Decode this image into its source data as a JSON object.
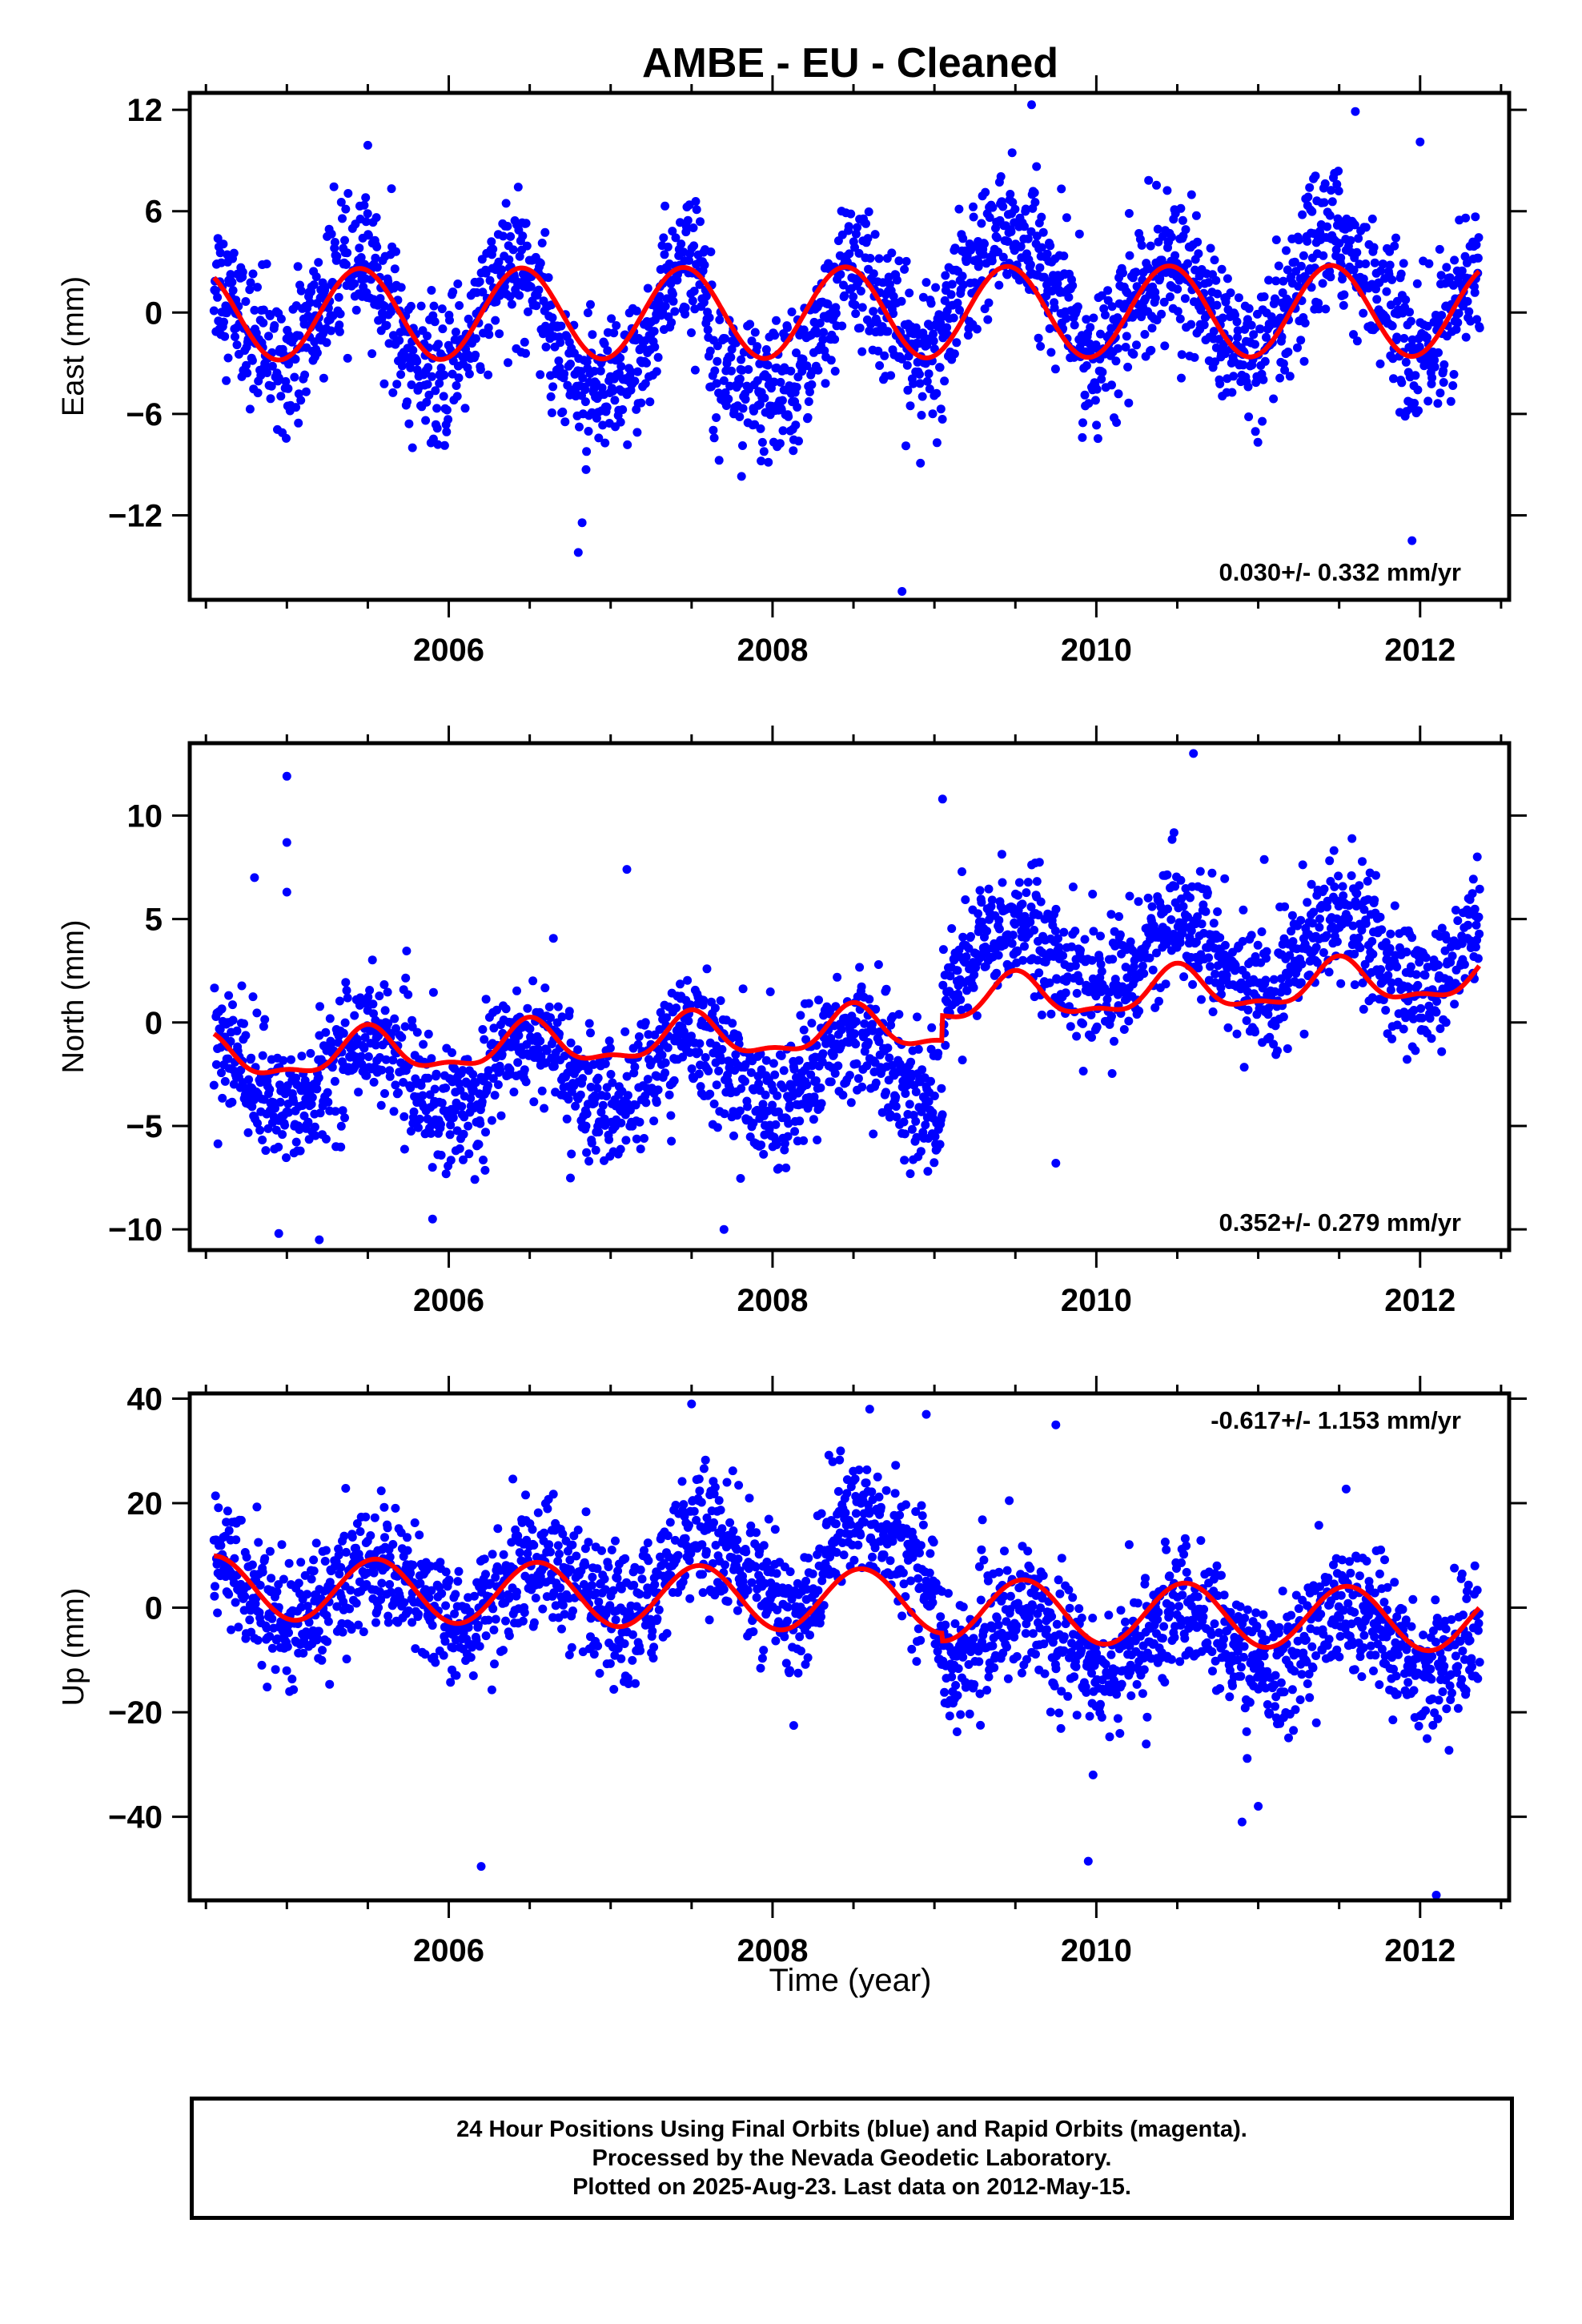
{
  "figure_title": "AMBE  - EU - Cleaned",
  "xlabel_bottom": "Time (year)",
  "caption": [
    "24 Hour Positions Using Final Orbits (blue) and Rapid Orbits (magenta).",
    "Processed by the Nevada Geodetic Laboratory.",
    "Plotted on 2025-Aug-23. Last data on 2012-May-15."
  ],
  "colors": {
    "points": "#0000ff",
    "fit": "#ff0000",
    "axes": "#000000"
  },
  "chart_data": [
    {
      "type": "scatter",
      "ylabel": "East (mm)",
      "rate_label": "0.030+/- 0.332 mm/yr",
      "rate_position": "bottom-right",
      "xlim": [
        2004.4,
        2012.55
      ],
      "ylim": [
        -17,
        13
      ],
      "xticks": [
        2006,
        2008,
        2010,
        2012
      ],
      "yticks": [
        12,
        6,
        0,
        -6,
        -12
      ],
      "ytick_labels": [
        "12",
        "6",
        "0",
        "−6",
        "−12"
      ],
      "series": [
        {
          "kind": "points",
          "color": "#0000ff",
          "x_range": [
            2004.55,
            2012.37
          ],
          "annual_amplitude": 2.7,
          "annual_peak": 0.45,
          "noise_sd": 2.0,
          "offsets": [
            [
              2005.65,
              2006.0,
              -1.5
            ],
            [
              2006.6,
              2007.3,
              -2.5
            ],
            [
              2007.6,
              2008.4,
              -2.5
            ],
            [
              2009.05,
              2009.9,
              2.0
            ],
            [
              2011.3,
              2011.9,
              1.8
            ]
          ],
          "outliers": [
            [
              2009.6,
              12.3
            ],
            [
              2011.6,
              11.9
            ],
            [
              2008.8,
              -16.5
            ],
            [
              2011.95,
              -13.5
            ],
            [
              2006.8,
              -14.2
            ],
            [
              2005.5,
              9.9
            ],
            [
              2012.0,
              10.1
            ]
          ]
        },
        {
          "kind": "fit",
          "color": "#ff0000",
          "label": "",
          "x_range": [
            2004.55,
            2012.37
          ],
          "offset": 0,
          "trend": 0.03,
          "annual_amplitude": 2.7,
          "annual_peak": 0.45,
          "semiannual_amplitude": 0.0
        }
      ]
    },
    {
      "type": "scatter",
      "ylabel": "North (mm)",
      "rate_label": "0.352+/- 0.279 mm/yr",
      "rate_position": "bottom-right",
      "xlim": [
        2004.4,
        2012.55
      ],
      "ylim": [
        -11,
        13.5
      ],
      "xticks": [
        2006,
        2008,
        2010,
        2012
      ],
      "yticks": [
        10,
        5,
        0,
        -5,
        -10
      ],
      "ytick_labels": [
        "10",
        "5",
        "0",
        "−5",
        "−10"
      ],
      "series": [
        {
          "kind": "points",
          "color": "#0000ff",
          "x_range": [
            2004.55,
            2012.37
          ],
          "annual_amplitude": 1.8,
          "annual_peak": 0.5,
          "noise_sd": 1.5,
          "offsets": [
            [
              2004.55,
              2009.05,
              -2.4
            ],
            [
              2009.05,
              2012.4,
              3.2
            ]
          ],
          "outliers": [
            [
              2005.0,
              11.9
            ],
            [
              2005.0,
              8.7
            ],
            [
              2005.0,
              6.3
            ],
            [
              2004.8,
              7.0
            ],
            [
              2010.6,
              13.0
            ],
            [
              2007.1,
              7.4
            ],
            [
              2009.05,
              10.8
            ],
            [
              2005.2,
              -10.5
            ],
            [
              2004.95,
              -10.2
            ],
            [
              2007.7,
              -10.0
            ],
            [
              2005.9,
              -9.5
            ],
            [
              2009.75,
              -6.8
            ]
          ]
        },
        {
          "kind": "fit",
          "color": "#ff0000",
          "label": "",
          "x_range": [
            2004.55,
            2012.37
          ],
          "offset": 0,
          "trend": 0.352,
          "annual_amplitude": 1.0,
          "annual_peak": 0.5,
          "semiannual_amplitude": 0.4,
          "steps": [
            [
              2004.55,
              -0.45
            ],
            [
              2009.05,
              0.75
            ]
          ]
        }
      ]
    },
    {
      "type": "scatter",
      "ylabel": "Up (mm)",
      "rate_label": "-0.617+/- 1.153 mm/yr",
      "rate_position": "top-right",
      "xlim": [
        2004.4,
        2012.55
      ],
      "ylim": [
        -56,
        41
      ],
      "xticks": [
        2006,
        2008,
        2010,
        2012
      ],
      "yticks": [
        40,
        20,
        0,
        -20,
        -40
      ],
      "ytick_labels": [
        "40",
        "20",
        "0",
        "−20",
        "−40"
      ],
      "series": [
        {
          "kind": "points",
          "color": "#0000ff",
          "x_range": [
            2004.55,
            2012.37
          ],
          "annual_amplitude": 6.0,
          "annual_peak": 0.55,
          "noise_sd": 6.0,
          "offsets": [
            [
              2004.55,
              2009.05,
              3.0
            ],
            [
              2007.3,
              2008.05,
              5.0
            ],
            [
              2008.3,
              2009.0,
              8.0
            ],
            [
              2009.05,
              2012.4,
              -6.0
            ]
          ],
          "outliers": [
            [
              2007.5,
              39.0
            ],
            [
              2008.6,
              38.0
            ],
            [
              2008.95,
              37.0
            ],
            [
              2009.75,
              35.0
            ],
            [
              2006.2,
              -49.5
            ],
            [
              2009.95,
              -48.5
            ],
            [
              2012.1,
              -55.0
            ],
            [
              2010.9,
              -41.0
            ],
            [
              2011.0,
              -38.0
            ],
            [
              2009.98,
              -32.0
            ]
          ]
        },
        {
          "kind": "fit",
          "color": "#ff0000",
          "label": "",
          "x_range": [
            2004.55,
            2012.37
          ],
          "offset": 0,
          "trend": -0.617,
          "annual_amplitude": 6.0,
          "annual_peak": 0.55,
          "semiannual_amplitude": 0.0,
          "steps": [
            [
              2004.55,
              1.5
            ],
            [
              2009.05,
              0.0
            ]
          ]
        }
      ]
    }
  ]
}
